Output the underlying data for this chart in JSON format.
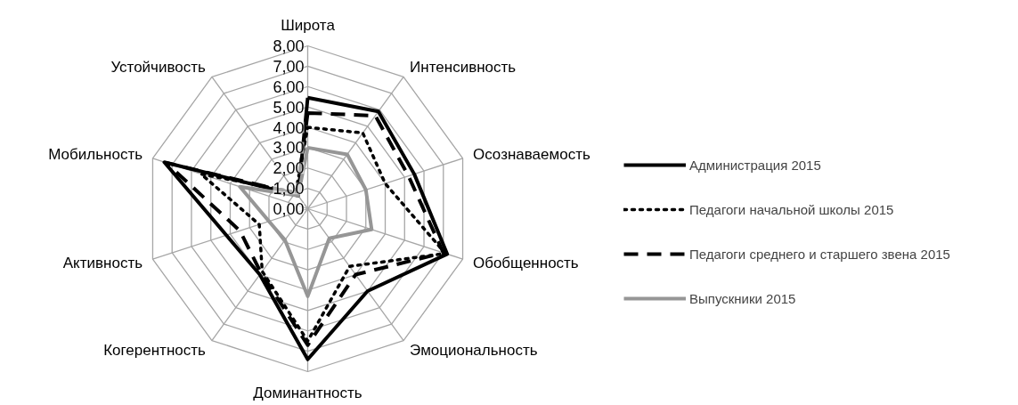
{
  "chart_data": {
    "type": "radar",
    "categories": [
      "Широта",
      "Интенсивность",
      "Осознаваемость",
      "Обобщенность",
      "Эмоциональность",
      "Доминантность",
      "Когерентность",
      "Активность",
      "Мобильность",
      "Устойчивость"
    ],
    "series": [
      {
        "name": "Администрация 2015",
        "color": "#000000",
        "line_style": "solid",
        "values": [
          5.45,
          5.9,
          5.5,
          7.2,
          5.0,
          7.4,
          4.0,
          4.2,
          7.4,
          0.8
        ]
      },
      {
        "name": "Педагоги начальной школы 2015",
        "color": "#000000",
        "line_style": "dotted",
        "values": [
          4.0,
          4.6,
          4.0,
          7.1,
          3.5,
          6.5,
          3.8,
          2.5,
          5.5,
          1.0
        ]
      },
      {
        "name": "Педагоги среднего и старшего звена 2015",
        "color": "#000000",
        "line_style": "dashed",
        "values": [
          4.7,
          5.65,
          5.2,
          7.0,
          4.0,
          6.7,
          3.9,
          3.5,
          7.3,
          0.9
        ]
      },
      {
        "name": "Выпускники 2015",
        "color": "#969696",
        "line_style": "solid",
        "values": [
          3.0,
          3.3,
          3.0,
          3.3,
          1.8,
          4.3,
          1.9,
          2.0,
          3.5,
          0.8
        ]
      }
    ],
    "ylim": [
      0,
      8
    ],
    "yticks": [
      {
        "value": 0,
        "label": "0,00"
      },
      {
        "value": 1,
        "label": "1,00"
      },
      {
        "value": 2,
        "label": "2,00"
      },
      {
        "value": 3,
        "label": "3,00"
      },
      {
        "value": 4,
        "label": "4,00"
      },
      {
        "value": 5,
        "label": "5,00"
      },
      {
        "value": 6,
        "label": "6,00"
      },
      {
        "value": 7,
        "label": "7,00"
      },
      {
        "value": 8,
        "label": "8,00"
      }
    ],
    "grid": true,
    "legend": "right"
  }
}
